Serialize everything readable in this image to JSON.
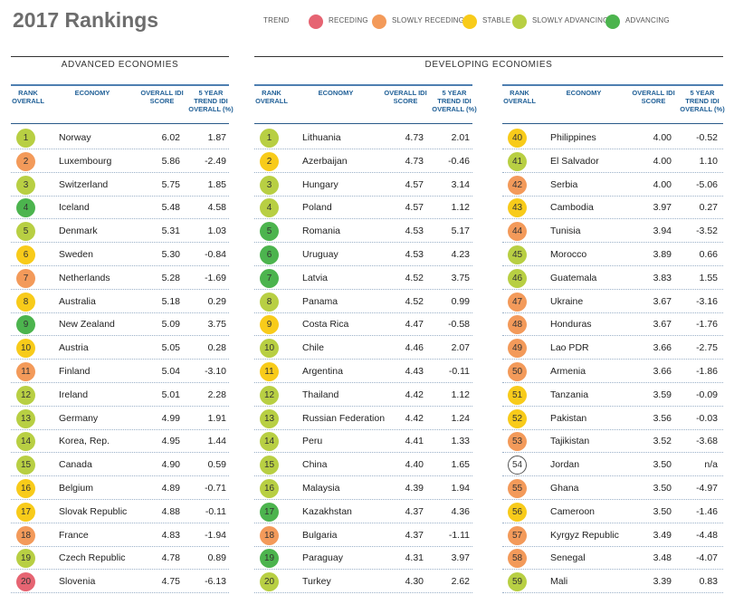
{
  "title": "2017 Rankings",
  "legend": {
    "label": "TREND",
    "items": [
      {
        "key": "receding",
        "label": "RECEDING",
        "color": "#e66472"
      },
      {
        "key": "slowrec",
        "label": "SLOWLY RECEDING",
        "color": "#f39a5a"
      },
      {
        "key": "stable",
        "label": "STABLE",
        "color": "#f8cb1a"
      },
      {
        "key": "slowadv",
        "label": "SLOWLY ADVANCING",
        "color": "#b8cf43"
      },
      {
        "key": "adv",
        "label": "ADVANCING",
        "color": "#4cb44e"
      }
    ]
  },
  "sections": {
    "advanced": "ADVANCED ECONOMIES",
    "developing": "DEVELOPING ECONOMIES"
  },
  "headers": {
    "rank": "RANK OVERALL",
    "economy": "ECONOMY",
    "score": "OVERALL IDI SCORE",
    "trend": "5 YEAR TREND IDI OVERALL (%)"
  },
  "tables": [
    {
      "rows": [
        {
          "rank": "1",
          "economy": "Norway",
          "score": "6.02",
          "trend": "1.87",
          "status": "slowadv"
        },
        {
          "rank": "2",
          "economy": "Luxembourg",
          "score": "5.86",
          "trend": "-2.49",
          "status": "slowrec"
        },
        {
          "rank": "3",
          "economy": "Switzerland",
          "score": "5.75",
          "trend": "1.85",
          "status": "slowadv"
        },
        {
          "rank": "4",
          "economy": "Iceland",
          "score": "5.48",
          "trend": "4.58",
          "status": "adv"
        },
        {
          "rank": "5",
          "economy": "Denmark",
          "score": "5.31",
          "trend": "1.03",
          "status": "slowadv"
        },
        {
          "rank": "6",
          "economy": "Sweden",
          "score": "5.30",
          "trend": "-0.84",
          "status": "stable"
        },
        {
          "rank": "7",
          "economy": "Netherlands",
          "score": "5.28",
          "trend": "-1.69",
          "status": "slowrec"
        },
        {
          "rank": "8",
          "economy": "Australia",
          "score": "5.18",
          "trend": "0.29",
          "status": "stable"
        },
        {
          "rank": "9",
          "economy": "New Zealand",
          "score": "5.09",
          "trend": "3.75",
          "status": "adv"
        },
        {
          "rank": "10",
          "economy": "Austria",
          "score": "5.05",
          "trend": "0.28",
          "status": "stable"
        },
        {
          "rank": "11",
          "economy": "Finland",
          "score": "5.04",
          "trend": "-3.10",
          "status": "slowrec"
        },
        {
          "rank": "12",
          "economy": "Ireland",
          "score": "5.01",
          "trend": "2.28",
          "status": "slowadv"
        },
        {
          "rank": "13",
          "economy": "Germany",
          "score": "4.99",
          "trend": "1.91",
          "status": "slowadv"
        },
        {
          "rank": "14",
          "economy": "Korea, Rep.",
          "score": "4.95",
          "trend": "1.44",
          "status": "slowadv"
        },
        {
          "rank": "15",
          "economy": "Canada",
          "score": "4.90",
          "trend": "0.59",
          "status": "slowadv"
        },
        {
          "rank": "16",
          "economy": "Belgium",
          "score": "4.89",
          "trend": "-0.71",
          "status": "stable"
        },
        {
          "rank": "17",
          "economy": "Slovak Republic",
          "score": "4.88",
          "trend": "-0.11",
          "status": "stable"
        },
        {
          "rank": "18",
          "economy": "France",
          "score": "4.83",
          "trend": "-1.94",
          "status": "slowrec"
        },
        {
          "rank": "19",
          "economy": "Czech Republic",
          "score": "4.78",
          "trend": "0.89",
          "status": "slowadv"
        },
        {
          "rank": "20",
          "economy": "Slovenia",
          "score": "4.75",
          "trend": "-6.13",
          "status": "receding"
        }
      ]
    },
    {
      "rows": [
        {
          "rank": "1",
          "economy": "Lithuania",
          "score": "4.73",
          "trend": "2.01",
          "status": "slowadv"
        },
        {
          "rank": "2",
          "economy": "Azerbaijan",
          "score": "4.73",
          "trend": "-0.46",
          "status": "stable"
        },
        {
          "rank": "3",
          "economy": "Hungary",
          "score": "4.57",
          "trend": "3.14",
          "status": "slowadv"
        },
        {
          "rank": "4",
          "economy": "Poland",
          "score": "4.57",
          "trend": "1.12",
          "status": "slowadv"
        },
        {
          "rank": "5",
          "economy": "Romania",
          "score": "4.53",
          "trend": "5.17",
          "status": "adv"
        },
        {
          "rank": "6",
          "economy": "Uruguay",
          "score": "4.53",
          "trend": "4.23",
          "status": "adv"
        },
        {
          "rank": "7",
          "economy": "Latvia",
          "score": "4.52",
          "trend": "3.75",
          "status": "adv"
        },
        {
          "rank": "8",
          "economy": "Panama",
          "score": "4.52",
          "trend": "0.99",
          "status": "slowadv"
        },
        {
          "rank": "9",
          "economy": "Costa Rica",
          "score": "4.47",
          "trend": "-0.58",
          "status": "stable"
        },
        {
          "rank": "10",
          "economy": "Chile",
          "score": "4.46",
          "trend": "2.07",
          "status": "slowadv"
        },
        {
          "rank": "11",
          "economy": "Argentina",
          "score": "4.43",
          "trend": "-0.11",
          "status": "stable"
        },
        {
          "rank": "12",
          "economy": "Thailand",
          "score": "4.42",
          "trend": "1.12",
          "status": "slowadv"
        },
        {
          "rank": "13",
          "economy": "Russian Federation",
          "score": "4.42",
          "trend": "1.24",
          "status": "slowadv"
        },
        {
          "rank": "14",
          "economy": "Peru",
          "score": "4.41",
          "trend": "1.33",
          "status": "slowadv"
        },
        {
          "rank": "15",
          "economy": "China",
          "score": "4.40",
          "trend": "1.65",
          "status": "slowadv"
        },
        {
          "rank": "16",
          "economy": "Malaysia",
          "score": "4.39",
          "trend": "1.94",
          "status": "slowadv"
        },
        {
          "rank": "17",
          "economy": "Kazakhstan",
          "score": "4.37",
          "trend": "4.36",
          "status": "adv"
        },
        {
          "rank": "18",
          "economy": "Bulgaria",
          "score": "4.37",
          "trend": "-1.11",
          "status": "slowrec"
        },
        {
          "rank": "19",
          "economy": "Paraguay",
          "score": "4.31",
          "trend": "3.97",
          "status": "adv"
        },
        {
          "rank": "20",
          "economy": "Turkey",
          "score": "4.30",
          "trend": "2.62",
          "status": "slowadv"
        }
      ]
    },
    {
      "rows": [
        {
          "rank": "40",
          "economy": "Philippines",
          "score": "4.00",
          "trend": "-0.52",
          "status": "stable"
        },
        {
          "rank": "41",
          "economy": "El Salvador",
          "score": "4.00",
          "trend": "1.10",
          "status": "slowadv"
        },
        {
          "rank": "42",
          "economy": "Serbia",
          "score": "4.00",
          "trend": "-5.06",
          "status": "slowrec"
        },
        {
          "rank": "43",
          "economy": "Cambodia",
          "score": "3.97",
          "trend": "0.27",
          "status": "stable"
        },
        {
          "rank": "44",
          "economy": "Tunisia",
          "score": "3.94",
          "trend": "-3.52",
          "status": "slowrec"
        },
        {
          "rank": "45",
          "economy": "Morocco",
          "score": "3.89",
          "trend": "0.66",
          "status": "slowadv"
        },
        {
          "rank": "46",
          "economy": "Guatemala",
          "score": "3.83",
          "trend": "1.55",
          "status": "slowadv"
        },
        {
          "rank": "47",
          "economy": "Ukraine",
          "score": "3.67",
          "trend": "-3.16",
          "status": "slowrec"
        },
        {
          "rank": "48",
          "economy": "Honduras",
          "score": "3.67",
          "trend": "-1.76",
          "status": "slowrec"
        },
        {
          "rank": "49",
          "economy": "Lao PDR",
          "score": "3.66",
          "trend": "-2.75",
          "status": "slowrec"
        },
        {
          "rank": "50",
          "economy": "Armenia",
          "score": "3.66",
          "trend": "-1.86",
          "status": "slowrec"
        },
        {
          "rank": "51",
          "economy": "Tanzania",
          "score": "3.59",
          "trend": "-0.09",
          "status": "stable"
        },
        {
          "rank": "52",
          "economy": "Pakistan",
          "score": "3.56",
          "trend": "-0.03",
          "status": "stable"
        },
        {
          "rank": "53",
          "economy": "Tajikistan",
          "score": "3.52",
          "trend": "-3.68",
          "status": "slowrec"
        },
        {
          "rank": "54",
          "economy": "Jordan",
          "score": "3.50",
          "trend": "n/a",
          "status": "none"
        },
        {
          "rank": "55",
          "economy": "Ghana",
          "score": "3.50",
          "trend": "-4.97",
          "status": "slowrec"
        },
        {
          "rank": "56",
          "economy": "Cameroon",
          "score": "3.50",
          "trend": "-1.46",
          "status": "stable"
        },
        {
          "rank": "57",
          "economy": "Kyrgyz Republic",
          "score": "3.49",
          "trend": "-4.48",
          "status": "slowrec"
        },
        {
          "rank": "58",
          "economy": "Senegal",
          "score": "3.48",
          "trend": "-4.07",
          "status": "slowrec"
        },
        {
          "rank": "59",
          "economy": "Mali",
          "score": "3.39",
          "trend": "0.83",
          "status": "slowadv"
        }
      ]
    }
  ]
}
